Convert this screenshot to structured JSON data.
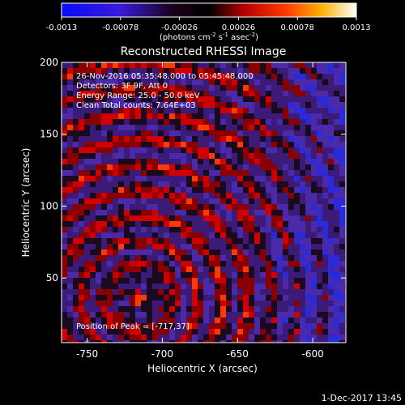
{
  "colorbar": {
    "ticks": [
      -0.0013,
      -0.00078,
      -0.00026,
      0.00026,
      0.00078,
      0.0013
    ],
    "tick_labels": [
      "-0.0013",
      "-0.00078",
      "-0.00026",
      "0.00026",
      "0.00078",
      "0.0013"
    ],
    "unit_main": "(photons cm",
    "unit_sup1": "-2",
    "unit_mid": " s",
    "unit_sup2": "-1",
    "unit_end": " asec",
    "unit_sup3": "-2",
    "unit_close": ")",
    "colormap": "blue-black-red-yellow-white"
  },
  "chart_data": {
    "type": "heatmap",
    "title": "Reconstructed RHESSI Image",
    "xlabel": "Heliocentric X (arcsec)",
    "ylabel": "Heliocentric Y (arcsec)",
    "xlim": [
      -767,
      -578
    ],
    "ylim": [
      5,
      200
    ],
    "x_ticks": [
      -750,
      -700,
      -650,
      -600
    ],
    "x_tick_labels": [
      "-750",
      "-700",
      "-650",
      "-600"
    ],
    "y_ticks": [
      50,
      100,
      150,
      200
    ],
    "y_tick_labels": [
      "50",
      "100",
      "150",
      "200"
    ],
    "peak": [
      -717,
      37
    ],
    "annotations": [
      "26-Nov-2016 05:35:48.000 to 05:45:48.000",
      "Detectors: 3F 9F, Att 0",
      "Energy Range: 25.0 - 50.0 keV",
      "Clean    Total counts: 7.64E+03"
    ],
    "peak_label": "Position of Peak = [-717,37]"
  },
  "footer": {
    "timestamp": "1-Dec-2017 13:45"
  }
}
